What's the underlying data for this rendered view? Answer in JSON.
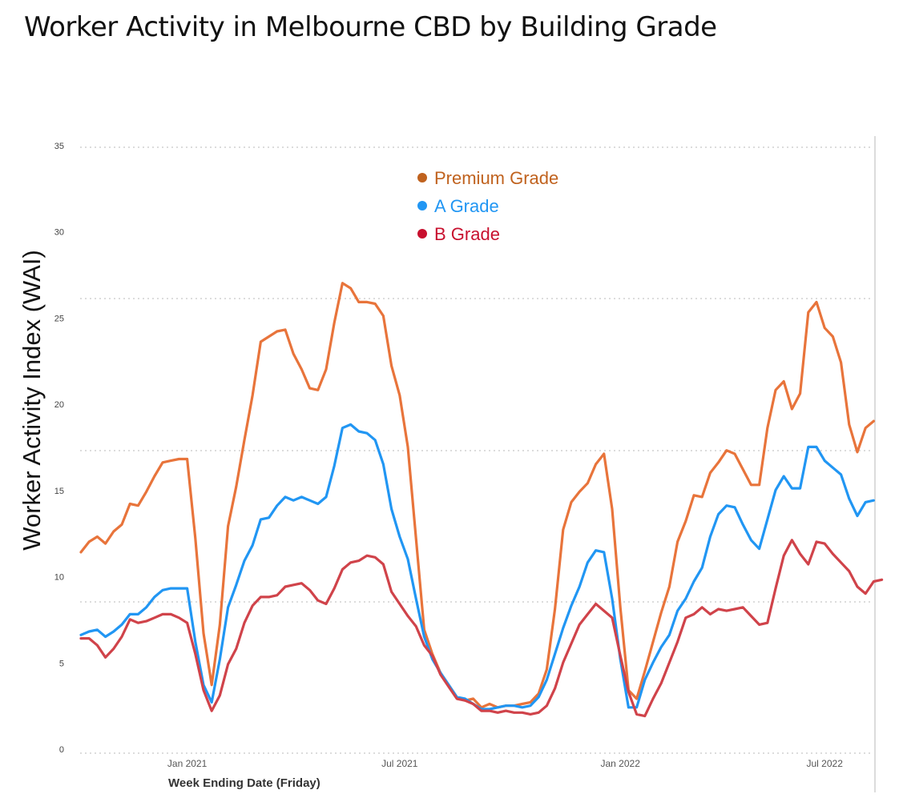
{
  "title": "Worker Activity in Melbourne CBD by Building Grade",
  "chart_data": {
    "type": "line",
    "xlabel": "Week Ending Date (Friday)",
    "ylabel": "Worker Activity Index (WAI)",
    "ylim": [
      0,
      35
    ],
    "yticks": [
      0,
      5,
      10,
      15,
      20,
      25,
      30,
      35
    ],
    "grid": "horizontal dotted",
    "legend_position": "top-center",
    "x_start": "2020-10-02",
    "x_tick_labels": [
      {
        "label": "Jan 2021",
        "date": "2021-01-01"
      },
      {
        "label": "Jul 2021",
        "date": "2021-07-02"
      },
      {
        "label": "Jan 2022",
        "date": "2022-01-07"
      },
      {
        "label": "Jul 2022",
        "date": "2022-07-01"
      }
    ],
    "series": [
      {
        "name": "Premium Grade",
        "color": "#e8743b",
        "legend_color": "#c0621e",
        "values": [
          11.7,
          12.3,
          12.6,
          12.2,
          12.9,
          13.3,
          14.5,
          14.4,
          15.2,
          16.1,
          16.9,
          17.0,
          17.1,
          17.1,
          12.5,
          7.0,
          4.0,
          7.5,
          13.2,
          15.5,
          18.2,
          20.8,
          23.9,
          24.2,
          24.5,
          24.6,
          23.2,
          22.3,
          21.2,
          21.1,
          22.3,
          25.0,
          27.3,
          27.0,
          26.2,
          26.2,
          26.1,
          25.4,
          22.5,
          20.8,
          17.8,
          12.5,
          7.2,
          5.8,
          4.7,
          4.0,
          3.3,
          3.1,
          3.2,
          2.7,
          2.9,
          2.7,
          2.8,
          2.8,
          2.9,
          3.0,
          3.5,
          4.9,
          8.4,
          13.0,
          14.6,
          15.2,
          15.7,
          16.8,
          17.4,
          14.2,
          8.5,
          3.7,
          3.2,
          4.8,
          6.5,
          8.2,
          9.7,
          12.3,
          13.5,
          15.0,
          14.9,
          16.3,
          16.9,
          17.6,
          17.4,
          16.5,
          15.6,
          15.6,
          18.9,
          21.1,
          21.6,
          20.0,
          20.9,
          25.6,
          26.2,
          24.7,
          24.2,
          22.7,
          19.1,
          17.5,
          18.9,
          19.3
        ]
      },
      {
        "name": "A Grade",
        "color": "#2196f3",
        "legend_color": "#2196f3",
        "values": [
          6.9,
          7.1,
          7.2,
          6.8,
          7.1,
          7.5,
          8.1,
          8.1,
          8.5,
          9.1,
          9.5,
          9.6,
          9.6,
          9.6,
          6.5,
          4.0,
          3.0,
          5.5,
          8.5,
          9.8,
          11.2,
          12.1,
          13.6,
          13.7,
          14.4,
          14.9,
          14.7,
          14.9,
          14.7,
          14.5,
          14.9,
          16.7,
          18.9,
          19.1,
          18.7,
          18.6,
          18.2,
          16.8,
          14.2,
          12.6,
          11.3,
          9.0,
          6.8,
          5.5,
          4.7,
          4.0,
          3.3,
          3.2,
          2.9,
          2.6,
          2.6,
          2.7,
          2.8,
          2.8,
          2.7,
          2.8,
          3.3,
          4.3,
          5.8,
          7.3,
          8.6,
          9.7,
          11.1,
          11.8,
          11.7,
          9.0,
          5.5,
          2.7,
          2.7,
          4.3,
          5.3,
          6.2,
          6.9,
          8.3,
          9.0,
          10.0,
          10.8,
          12.6,
          13.9,
          14.4,
          14.3,
          13.3,
          12.4,
          11.9,
          13.6,
          15.3,
          16.1,
          15.4,
          15.4,
          17.8,
          17.8,
          17.0,
          16.6,
          16.2,
          14.8,
          13.8,
          14.6,
          14.7
        ]
      },
      {
        "name": "B Grade",
        "color": "#d0434a",
        "legend_color": "#c8102e",
        "values": [
          6.7,
          6.7,
          6.3,
          5.6,
          6.1,
          6.8,
          7.8,
          7.6,
          7.7,
          7.9,
          8.1,
          8.1,
          7.9,
          7.6,
          5.8,
          3.7,
          2.5,
          3.4,
          5.2,
          6.1,
          7.6,
          8.6,
          9.1,
          9.1,
          9.2,
          9.7,
          9.8,
          9.9,
          9.5,
          8.9,
          8.7,
          9.6,
          10.7,
          11.1,
          11.2,
          11.5,
          11.4,
          11.0,
          9.4,
          8.7,
          8.0,
          7.4,
          6.3,
          5.7,
          4.6,
          3.9,
          3.2,
          3.1,
          2.9,
          2.5,
          2.5,
          2.4,
          2.5,
          2.4,
          2.4,
          2.3,
          2.4,
          2.8,
          3.8,
          5.3,
          6.4,
          7.5,
          8.1,
          8.7,
          8.3,
          7.9,
          5.7,
          3.6,
          2.3,
          2.2,
          3.2,
          4.1,
          5.3,
          6.5,
          7.9,
          8.1,
          8.5,
          8.1,
          8.4,
          8.3,
          8.4,
          8.5,
          8.0,
          7.5,
          7.6,
          9.6,
          11.5,
          12.4,
          11.6,
          11.0,
          12.3,
          12.2,
          11.6,
          11.1,
          10.6,
          9.7,
          9.3,
          10.0,
          10.1
        ]
      }
    ]
  }
}
